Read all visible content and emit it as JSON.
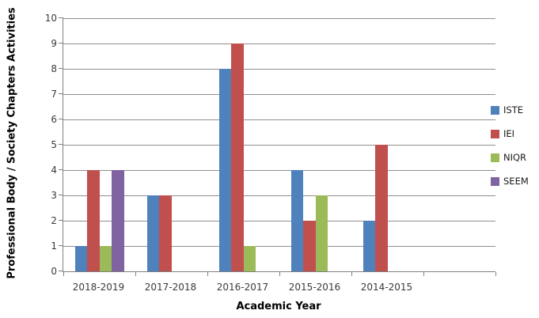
{
  "chart_data": {
    "type": "bar",
    "title": "",
    "xlabel": "Academic Year",
    "ylabel": "Professional Body / Society Chapters Activities",
    "categories": [
      "2018-2019",
      "2017-2018",
      "2016-2017",
      "2015-2016",
      "2014-2015",
      ""
    ],
    "series": [
      {
        "name": "ISTE",
        "color": "#4F81BD",
        "values": [
          1,
          3,
          8,
          4,
          2,
          0
        ]
      },
      {
        "name": "IEI",
        "color": "#C0504D",
        "values": [
          4,
          3,
          9,
          2,
          5,
          0
        ]
      },
      {
        "name": "NIQR",
        "color": "#9BBB59",
        "values": [
          1,
          0,
          1,
          3,
          0,
          0
        ]
      },
      {
        "name": "SEEM",
        "color": "#8064A2",
        "values": [
          4,
          0,
          0,
          0,
          0,
          0
        ]
      }
    ],
    "ylim": [
      0,
      10
    ],
    "ytick_step": 1,
    "grid": true,
    "legend_position": "right"
  },
  "style": {
    "gridline_color": "#8E8E8E",
    "axis_color": "#808080",
    "tick_label_color": "#3a3a3a",
    "background": "#FFFFFF"
  }
}
